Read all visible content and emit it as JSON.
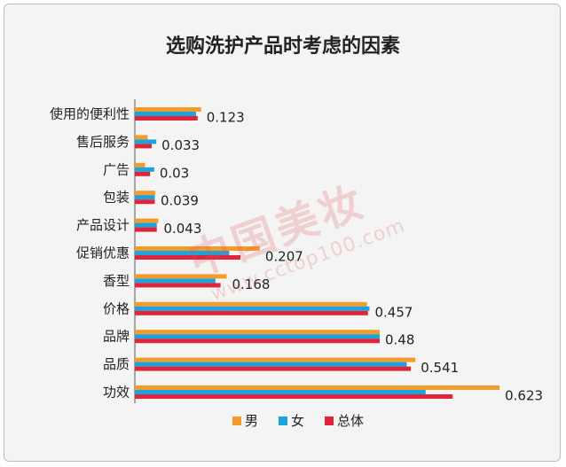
{
  "chart_data": {
    "type": "bar",
    "orientation": "horizontal",
    "title": "选购洗护产品时考虑的因素",
    "categories": [
      "使用的便利性",
      "售后服务",
      "广告",
      "包装",
      "产品设计",
      "促销优惠",
      "香型",
      "价格",
      "品牌",
      "品质",
      "功效"
    ],
    "series": [
      {
        "name": "男",
        "color": "#f39c2c",
        "values": [
          0.13,
          0.025,
          0.02,
          0.04,
          0.046,
          0.245,
          0.18,
          0.455,
          0.48,
          0.55,
          0.715
        ]
      },
      {
        "name": "女",
        "color": "#1aa3dc",
        "values": [
          0.12,
          0.042,
          0.038,
          0.039,
          0.043,
          0.185,
          0.158,
          0.46,
          0.48,
          0.533,
          0.57
        ]
      },
      {
        "name": "总体",
        "color": "#e0253a",
        "values": [
          0.123,
          0.033,
          0.03,
          0.039,
          0.043,
          0.207,
          0.168,
          0.457,
          0.48,
          0.541,
          0.623
        ]
      }
    ],
    "data_labels": [
      "0.123",
      "0.033",
      "0.03",
      "0.039",
      "0.043",
      "0.207",
      "0.168",
      "0.457",
      "0.48",
      "0.541",
      "0.623"
    ],
    "xlim": [
      0,
      0.78
    ],
    "grid": false,
    "legend": "bottom"
  },
  "watermark": {
    "main": "中国美妆",
    "sub": "www.cctop100.com"
  }
}
